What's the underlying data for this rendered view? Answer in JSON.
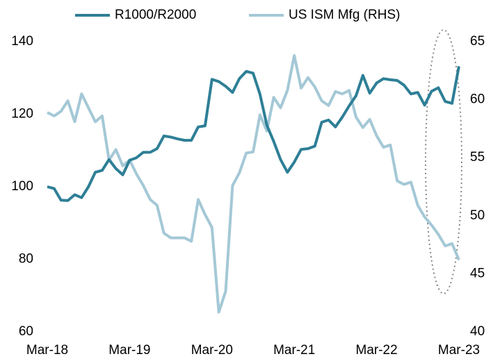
{
  "chart_data": {
    "type": "line",
    "categories": [
      "Mar-18",
      null,
      null,
      null,
      null,
      null,
      null,
      null,
      null,
      null,
      null,
      null,
      "Mar-19",
      null,
      null,
      null,
      null,
      null,
      null,
      null,
      null,
      null,
      null,
      null,
      "Mar-20",
      null,
      null,
      null,
      null,
      null,
      null,
      null,
      null,
      null,
      null,
      null,
      "Mar-21",
      null,
      null,
      null,
      null,
      null,
      null,
      null,
      null,
      null,
      null,
      null,
      "Mar-22",
      null,
      null,
      null,
      null,
      null,
      null,
      null,
      null,
      null,
      null,
      null,
      "Mar-23"
    ],
    "series": [
      {
        "name": "R1000/R2000",
        "color": "#2e7f96",
        "values": [
          100,
          99.5,
          96.3,
          96.2,
          97.8,
          97,
          100,
          104,
          104.5,
          107.5,
          105,
          103.3,
          107.3,
          108,
          109.5,
          109.5,
          110.5,
          114,
          113.7,
          113.2,
          112.8,
          112.8,
          116.5,
          116.8,
          129.6,
          129,
          127.7,
          126,
          129.8,
          131.8,
          131.3,
          125.5,
          117,
          112.5,
          107.5,
          104,
          106.8,
          110.3,
          110.5,
          111.2,
          117.8,
          118.4,
          116.5,
          119.2,
          122.3,
          125.1,
          130.7,
          125.8,
          128.6,
          129.8,
          129.5,
          129.3,
          128,
          125.6,
          126,
          122.5,
          126.3,
          127.3,
          123.5,
          123,
          133.2
        ]
      },
      {
        "name": "US ISM Mfg (RHS)",
        "color": "#a4c8d6",
        "axis": "y2",
        "values": [
          58.9,
          58.6,
          59,
          59.9,
          58.1,
          60.5,
          59.3,
          58.1,
          58.6,
          54.8,
          55.7,
          54.3,
          54.8,
          53.6,
          52.6,
          51.4,
          50.9,
          48.5,
          48.1,
          48.1,
          48.1,
          47.8,
          51.4,
          50.1,
          49,
          41.7,
          43.5,
          52.6,
          53.7,
          55.4,
          55.5,
          58.7,
          57.3,
          60.2,
          59.3,
          60.8,
          63.8,
          61,
          61.9,
          61.1,
          59.9,
          59.5,
          60.7,
          60.5,
          60.8,
          58.5,
          57.6,
          58.3,
          56.9,
          55.9,
          56.1,
          53,
          52.7,
          52.9,
          50.9,
          49.9,
          49.2,
          48.4,
          47.4,
          47.6,
          46.2
        ]
      }
    ],
    "ylim": [
      60,
      140
    ],
    "yticks": [
      60,
      80,
      100,
      120,
      140
    ],
    "y2lim": [
      40,
      65
    ],
    "y2ticks": [
      40,
      45,
      50,
      55,
      60,
      65
    ],
    "legend": "top"
  }
}
